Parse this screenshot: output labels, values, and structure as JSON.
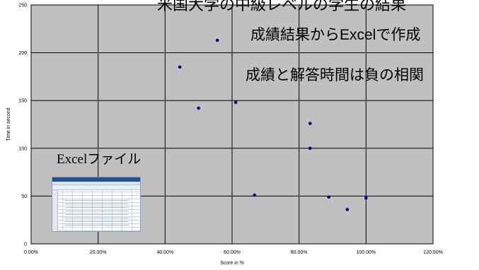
{
  "chart_data": {
    "type": "scatter",
    "title": "",
    "xlabel": "Score in %",
    "ylabel": "Time in second",
    "xlim": [
      0,
      120
    ],
    "ylim": [
      0,
      250
    ],
    "x_ticks": [
      "0.00%",
      "20.00%",
      "40.00%",
      "60.00%",
      "80.00%",
      "100.00%",
      "120.00%"
    ],
    "y_ticks": [
      "0",
      "50",
      "100",
      "150",
      "200",
      "250"
    ],
    "grid": true,
    "background": "#c0c0c0",
    "point_color": "#00007f",
    "points": [
      {
        "x": 44.4,
        "y": 185
      },
      {
        "x": 50.0,
        "y": 142
      },
      {
        "x": 55.6,
        "y": 213
      },
      {
        "x": 61.1,
        "y": 148
      },
      {
        "x": 66.7,
        "y": 51
      },
      {
        "x": 83.3,
        "y": 126
      },
      {
        "x": 83.3,
        "y": 100
      },
      {
        "x": 88.9,
        "y": 49
      },
      {
        "x": 94.4,
        "y": 36
      },
      {
        "x": 100.0,
        "y": 48
      }
    ]
  },
  "annotations": {
    "top_title": "米国大学の中級レベルの学生の結果",
    "excel_made": "成績結果からExcelで作成",
    "correlation": "成績と解答時間は負の相関",
    "excel_file": "Excelファイル"
  },
  "thumbnail": {
    "icon": "excel-spreadsheet-thumbnail"
  }
}
